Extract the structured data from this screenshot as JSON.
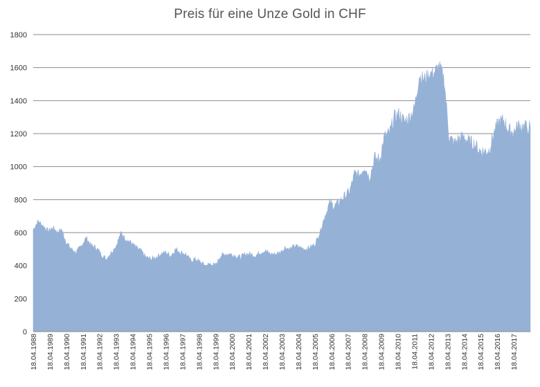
{
  "chart_data": {
    "type": "area",
    "title": "Preis für eine Unze Gold in CHF",
    "xlabel": "",
    "ylabel": "",
    "ylim": [
      0,
      1800
    ],
    "yticks": [
      "0",
      "200",
      "400",
      "600",
      "800",
      "1000",
      "1200",
      "1400",
      "1600",
      "1800"
    ],
    "xticks": [
      "18.04.1988",
      "18.04.1989",
      "18.04.1990",
      "18.04.1991",
      "18.04.1992",
      "18.04.1993",
      "18.04.1994",
      "18.04.1995",
      "18.04.1996",
      "18.04.1997",
      "18.04.1998",
      "18.04.1999",
      "18.04.2000",
      "18.04.2001",
      "18.04.2002",
      "18.04.2003",
      "18.04.2004",
      "18.04.2005",
      "18.04.2006",
      "18.04.2007",
      "18.04.2008",
      "18.04.2009",
      "18.04.2010",
      "18.04.2011",
      "18.04.2012",
      "18.04.2013",
      "18.04.2014",
      "18.04.2015",
      "18.04.2016",
      "18.04.2017"
    ],
    "grid": true,
    "legend": "none",
    "color": "#95b1d6",
    "x_start": 1988.3,
    "x_end": 2018.3,
    "series": [
      {
        "x": [
          1988.3,
          1988.6,
          1988.9,
          1989.2,
          1989.5,
          1989.8,
          1990.0,
          1990.3,
          1990.6,
          1990.9,
          1991.2,
          1991.5,
          1991.8,
          1992.1,
          1992.4,
          1992.7,
          1993.0,
          1993.3,
          1993.6,
          1993.9,
          1994.2,
          1994.5,
          1994.8,
          1995.1,
          1995.4,
          1995.7,
          1996.0,
          1996.3,
          1996.6,
          1996.9,
          1997.2,
          1997.5,
          1997.8,
          1998.1,
          1998.4,
          1998.7,
          1999.0,
          1999.3,
          1999.6,
          1999.9,
          2000.2,
          2000.5,
          2000.8,
          2001.1,
          2001.4,
          2001.7,
          2002.0,
          2002.3,
          2002.6,
          2002.9,
          2003.2,
          2003.5,
          2003.8,
          2004.1,
          2004.4,
          2004.7,
          2005.0,
          2005.3,
          2005.6,
          2005.9,
          2006.2,
          2006.5,
          2006.8,
          2007.1,
          2007.4,
          2007.7,
          2008.0,
          2008.3,
          2008.6,
          2008.9,
          2009.2,
          2009.5,
          2009.8,
          2010.1,
          2010.4,
          2010.7,
          2011.0,
          2011.3,
          2011.6,
          2011.9,
          2012.2,
          2012.5,
          2012.8,
          2013.1,
          2013.4,
          2013.7,
          2014.0,
          2014.3,
          2014.6,
          2014.9,
          2015.2,
          2015.5,
          2015.8,
          2016.1,
          2016.4,
          2016.7,
          2017.0,
          2017.3,
          2017.6,
          2017.9,
          2018.3
        ],
        "y": [
          620,
          670,
          640,
          610,
          630,
          600,
          620,
          540,
          500,
          480,
          520,
          570,
          520,
          510,
          470,
          440,
          480,
          520,
          600,
          560,
          540,
          510,
          490,
          450,
          440,
          450,
          470,
          480,
          460,
          500,
          480,
          470,
          430,
          440,
          420,
          400,
          410,
          400,
          460,
          470,
          470,
          460,
          450,
          470,
          470,
          460,
          480,
          490,
          470,
          470,
          480,
          510,
          500,
          520,
          510,
          500,
          510,
          530,
          600,
          700,
          780,
          760,
          790,
          820,
          850,
          960,
          950,
          1000,
          930,
          1050,
          1040,
          1180,
          1200,
          1300,
          1320,
          1270,
          1300,
          1350,
          1550,
          1530,
          1560,
          1570,
          1610,
          1530,
          1180,
          1140,
          1170,
          1180,
          1150,
          1140,
          1100,
          1090,
          1100,
          1200,
          1270,
          1280,
          1220,
          1210,
          1250,
          1240,
          1240
        ]
      }
    ]
  }
}
